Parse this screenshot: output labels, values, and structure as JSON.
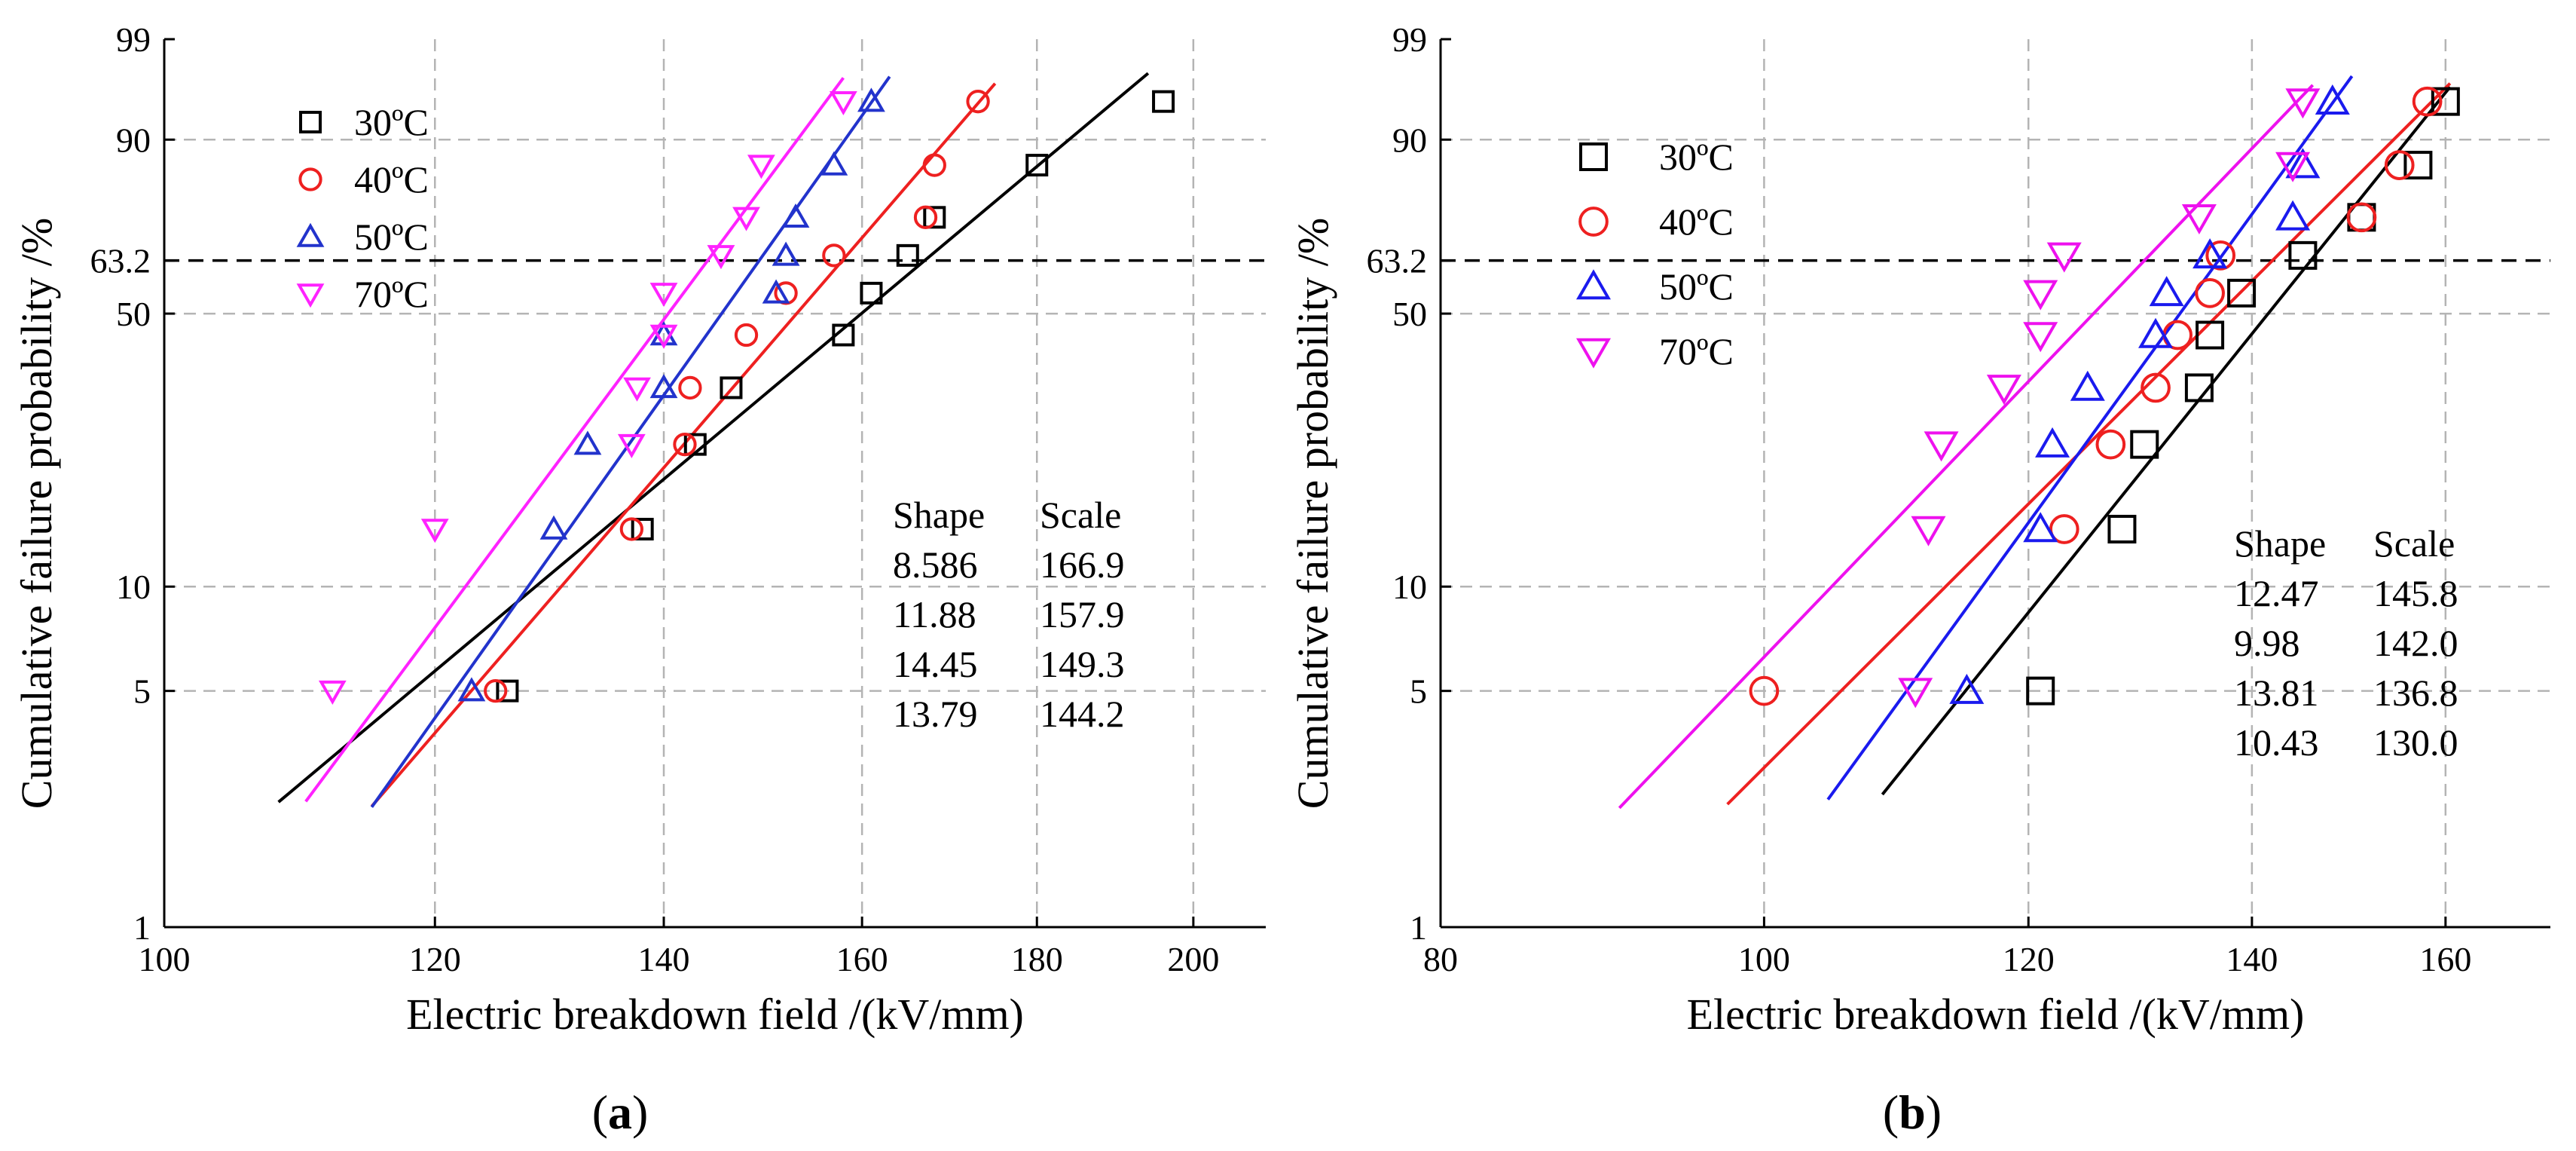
{
  "panels": [
    {
      "label": "(a)"
    },
    {
      "label": "(b)"
    }
  ],
  "chart_data": [
    {
      "type": "scatter",
      "panel_label": "(a)",
      "title": "",
      "xlabel": "Electric breakdown field /(kV/mm)",
      "ylabel": "Cumulative failure probability /%",
      "x_scale": "log",
      "y_scale": "weibull",
      "xlim": [
        100,
        210
      ],
      "ylim": [
        1,
        99
      ],
      "x_ticks": [
        100,
        120,
        140,
        160,
        180,
        200
      ],
      "y_ticks": [
        1,
        5,
        10,
        50,
        63.2,
        90,
        99
      ],
      "y_tick_labels": [
        "1",
        "5",
        "10",
        "50",
        "63.2",
        "90",
        "99"
      ],
      "grid": true,
      "reference_line": {
        "y": 63.2,
        "style": "dashed"
      },
      "legend_position": "top-left",
      "series": [
        {
          "name": "30ºC",
          "marker": "square",
          "color": "#000000",
          "x": [
            126,
            138,
            143,
            146.5,
            158,
            161,
            165,
            168,
            180,
            196
          ],
          "y": [
            5,
            14.5,
            24.5,
            34,
            45,
            55,
            64.5,
            74,
            85.5,
            95
          ],
          "fit": {
            "shape": 8.586,
            "scale": 166.9,
            "x_range": [
              108,
              194
            ]
          }
        },
        {
          "name": "40ºC",
          "marker": "circle",
          "color": "#ee2020",
          "x": [
            125,
            137,
            142,
            142.5,
            148,
            152,
            157,
            167,
            168,
            173
          ],
          "y": [
            5,
            14.5,
            24.5,
            34,
            45,
            55,
            64.5,
            74,
            85.5,
            95
          ],
          "fit": {
            "shape": 11.88,
            "scale": 157.9,
            "x_range": [
              115,
              175
            ]
          }
        },
        {
          "name": "50ºC",
          "marker": "triangle-up",
          "color": "#2233cc",
          "x": [
            123,
            130,
            133,
            140,
            140,
            151,
            152,
            153,
            157,
            161
          ],
          "y": [
            5,
            14.5,
            24.5,
            34,
            45,
            55,
            64.5,
            74,
            85.5,
            95
          ],
          "fit": {
            "shape": 14.45,
            "scale": 149.3,
            "x_range": [
              115,
              163
            ]
          }
        },
        {
          "name": "70ºC",
          "marker": "triangle-down",
          "color": "#ff22ff",
          "x": [
            112,
            120,
            137,
            137.5,
            140,
            140,
            145.5,
            148,
            149.5,
            158
          ],
          "y": [
            5,
            14.5,
            24.5,
            34,
            45,
            55,
            64.5,
            74,
            85.5,
            95
          ],
          "fit": {
            "shape": 13.79,
            "scale": 144.2,
            "x_range": [
              110,
              158
            ]
          }
        }
      ],
      "table": {
        "headers": [
          "Shape",
          "Scale"
        ],
        "rows": [
          [
            "8.586",
            "166.9"
          ],
          [
            "11.88",
            "157.9"
          ],
          [
            "14.45",
            "149.3"
          ],
          [
            "13.79",
            "144.2"
          ]
        ]
      }
    },
    {
      "type": "scatter",
      "panel_label": "(b)",
      "title": "",
      "xlabel": "Electric breakdown field /(kV/mm)",
      "ylabel": "Cumulative failure probability /%",
      "x_scale": "log",
      "y_scale": "weibull",
      "xlim": [
        80,
        172
      ],
      "ylim": [
        1,
        99
      ],
      "x_ticks": [
        80,
        100,
        120,
        140,
        160
      ],
      "y_ticks": [
        1,
        5,
        10,
        50,
        63.2,
        90,
        99
      ],
      "y_tick_labels": [
        "1",
        "5",
        "10",
        "50",
        "63.2",
        "90",
        "99"
      ],
      "grid": true,
      "reference_line": {
        "y": 63.2,
        "style": "dashed"
      },
      "legend_position": "top-left",
      "series": [
        {
          "name": "30ºC",
          "marker": "square",
          "color": "#000000",
          "x": [
            121,
            128,
            130,
            135,
            136,
            139,
            145,
            151,
            157,
            160
          ],
          "y": [
            5,
            14.5,
            24.5,
            34,
            45,
            55,
            64.5,
            74,
            85.5,
            95
          ],
          "fit": {
            "shape": 12.47,
            "scale": 145.8,
            "x_range": [
              108.5,
              160.5
            ]
          }
        },
        {
          "name": "40ºC",
          "marker": "circle",
          "color": "#ee2020",
          "x": [
            100,
            123,
            127,
            131,
            133,
            136,
            137,
            151,
            155,
            158
          ],
          "y": [
            5,
            14.5,
            24.5,
            34,
            45,
            55,
            64.5,
            74,
            85.5,
            95
          ],
          "fit": {
            "shape": 9.98,
            "scale": 142.0,
            "x_range": [
              97.5,
              160.5
            ]
          }
        },
        {
          "name": "50ºC",
          "marker": "triangle-up",
          "color": "#1a1aee",
          "x": [
            115,
            121,
            122,
            125,
            131,
            132,
            136,
            144,
            145,
            148
          ],
          "y": [
            5,
            14.5,
            24.5,
            34,
            45,
            55,
            64.5,
            74,
            85.5,
            95
          ],
          "fit": {
            "shape": 13.81,
            "scale": 136.8,
            "x_range": [
              104.5,
              150
            ]
          }
        },
        {
          "name": "70ºC",
          "marker": "triangle-down",
          "color": "#ee11ee",
          "x": [
            111,
            112,
            113,
            118,
            121,
            121,
            123,
            135,
            144,
            145
          ],
          "y": [
            5,
            14.5,
            24.5,
            34,
            45,
            55,
            64.5,
            74,
            85.5,
            95
          ],
          "fit": {
            "shape": 10.43,
            "scale": 130.0,
            "x_range": [
              90.5,
              146
            ]
          }
        }
      ],
      "table": {
        "headers": [
          "Shape",
          "Scale"
        ],
        "rows": [
          [
            "12.47",
            "145.8"
          ],
          [
            "9.98",
            "142.0"
          ],
          [
            "13.81",
            "136.8"
          ],
          [
            "10.43",
            "130.0"
          ]
        ]
      }
    }
  ]
}
